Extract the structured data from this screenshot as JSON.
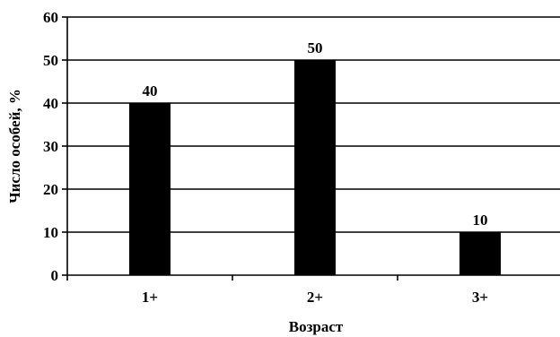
{
  "chart_data": {
    "type": "bar",
    "categories": [
      "1+",
      "2+",
      "3+"
    ],
    "values": [
      40,
      50,
      10
    ],
    "data_labels": [
      "40",
      "50",
      "10"
    ],
    "title": "",
    "xlabel": "Возраст",
    "ylabel": "Число особей, %",
    "ylim": [
      0,
      60
    ],
    "yticks": [
      "0",
      "10",
      "20",
      "30",
      "40",
      "50",
      "60"
    ],
    "grid": "horizontal",
    "legend": "none",
    "bar_color": "#000000"
  }
}
